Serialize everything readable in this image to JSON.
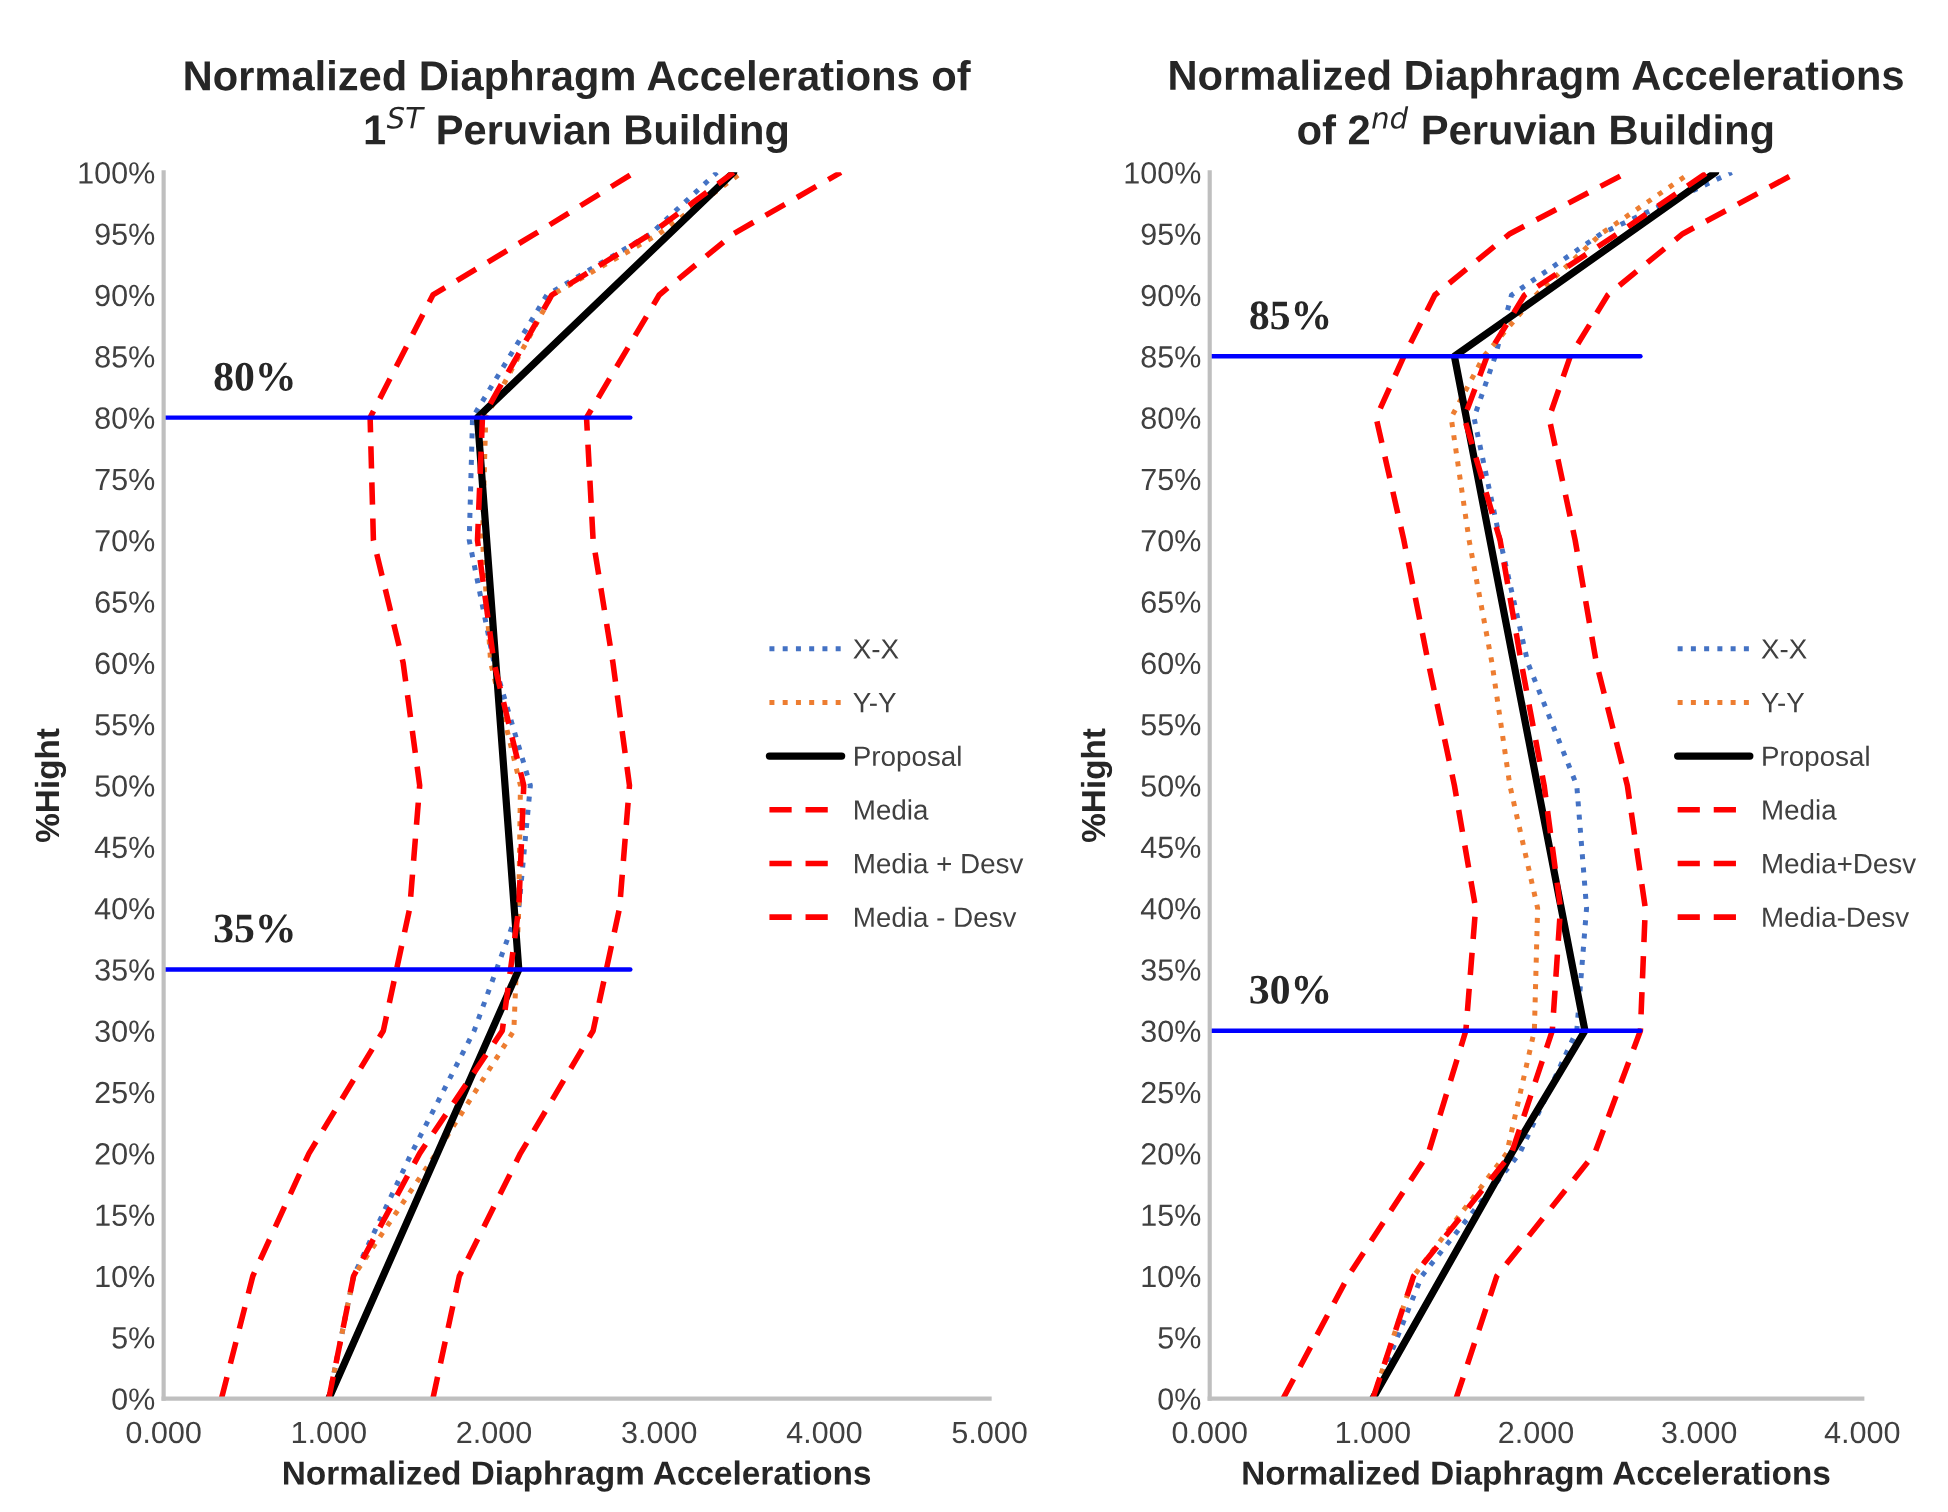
{
  "chart_data": [
    {
      "type": "line",
      "title": "Normalized Diaphragm Accelerations of\n1$^{ST}$ Peruvian Building",
      "xlabel": "Normalized Diaphragm Accelerations",
      "ylabel": "%Hight",
      "xlim": [
        0,
        5
      ],
      "xticks": [
        {
          "value": 0,
          "label": "0.000"
        },
        {
          "value": 1,
          "label": "1.000"
        },
        {
          "value": 2,
          "label": "2.000"
        },
        {
          "value": 3,
          "label": "3.000"
        },
        {
          "value": 4,
          "label": "4.000"
        },
        {
          "value": 5,
          "label": "5.000"
        }
      ],
      "ylim": [
        0,
        100
      ],
      "yticks": [
        {
          "value": 0,
          "label": "0%"
        },
        {
          "value": 5,
          "label": "5%"
        },
        {
          "value": 10,
          "label": "10%"
        },
        {
          "value": 15,
          "label": "15%"
        },
        {
          "value": 20,
          "label": "20%"
        },
        {
          "value": 25,
          "label": "25%"
        },
        {
          "value": 30,
          "label": "30%"
        },
        {
          "value": 35,
          "label": "35%"
        },
        {
          "value": 40,
          "label": "40%"
        },
        {
          "value": 45,
          "label": "45%"
        },
        {
          "value": 50,
          "label": "50%"
        },
        {
          "value": 55,
          "label": "55%"
        },
        {
          "value": 60,
          "label": "60%"
        },
        {
          "value": 65,
          "label": "65%"
        },
        {
          "value": 70,
          "label": "70%"
        },
        {
          "value": 75,
          "label": "75%"
        },
        {
          "value": 80,
          "label": "80%"
        },
        {
          "value": 85,
          "label": "85%"
        },
        {
          "value": 90,
          "label": "90%"
        },
        {
          "value": 95,
          "label": "95%"
        },
        {
          "value": 100,
          "label": "100%"
        }
      ],
      "grid": false,
      "legend": "right",
      "marker": "none",
      "series": [
        {
          "name": "X-X",
          "color": "#4472c4",
          "line_style": "dotted",
          "x": [
            1.0,
            1.15,
            1.5,
            1.88,
            2.15,
            2.22,
            2.0,
            1.85,
            1.87,
            2.32,
            2.95,
            3.35
          ],
          "values": [
            0,
            10,
            20,
            30,
            40,
            50,
            60,
            70,
            80,
            90,
            95,
            100
          ]
        },
        {
          "name": "Y-Y",
          "color": "#ed7d31",
          "line_style": "dotted",
          "x": [
            1.0,
            1.15,
            1.65,
            2.12,
            2.15,
            2.16,
            1.98,
            1.93,
            1.95,
            2.35,
            3.0,
            3.5
          ],
          "values": [
            0,
            10,
            20,
            30,
            40,
            50,
            60,
            70,
            80,
            90,
            95,
            100
          ]
        },
        {
          "name": "Proposal",
          "color": "#000000",
          "line_style": "solid",
          "x": [
            1.0,
            2.15,
            1.9,
            3.45
          ],
          "values": [
            0,
            35,
            80,
            100
          ]
        },
        {
          "name": "Media",
          "color": "#ff0000",
          "line_style": "dashed",
          "x": [
            1.0,
            1.15,
            1.55,
            2.05,
            2.15,
            2.18,
            2.0,
            1.9,
            1.93,
            2.35,
            2.95,
            3.45
          ],
          "values": [
            0,
            10,
            20,
            30,
            40,
            50,
            60,
            70,
            80,
            90,
            95,
            100
          ]
        },
        {
          "name": "Media + Desv",
          "color": "#ff0000",
          "line_style": "dashed",
          "x": [
            1.63,
            1.79,
            2.16,
            2.6,
            2.76,
            2.82,
            2.72,
            2.6,
            2.56,
            3.0,
            3.45,
            4.1
          ],
          "values": [
            0,
            10,
            20,
            30,
            40,
            50,
            60,
            70,
            80,
            90,
            95,
            100
          ]
        },
        {
          "name": "Media - Desv",
          "color": "#ff0000",
          "line_style": "dashed",
          "x": [
            0.35,
            0.54,
            0.88,
            1.33,
            1.49,
            1.55,
            1.45,
            1.27,
            1.25,
            1.63,
            2.25,
            2.85
          ],
          "values": [
            0,
            10,
            20,
            30,
            40,
            50,
            60,
            70,
            80,
            90,
            95,
            100
          ]
        }
      ],
      "ref_lines": [
        {
          "axis": "y",
          "value": 80,
          "label": "80%",
          "color": "#0000ff"
        },
        {
          "axis": "y",
          "value": 35,
          "label": "35%",
          "color": "#0000ff"
        }
      ]
    },
    {
      "type": "line",
      "title": "Normalized Diaphragm Accelerations\nof 2$^{nd}$ Peruvian Building",
      "xlabel": "Normalized Diaphragm Accelerations",
      "ylabel": "%Hight",
      "xlim": [
        0,
        4
      ],
      "xticks": [
        {
          "value": 0,
          "label": "0.000"
        },
        {
          "value": 1,
          "label": "1.000"
        },
        {
          "value": 2,
          "label": "2.000"
        },
        {
          "value": 3,
          "label": "3.000"
        },
        {
          "value": 4,
          "label": "4.000"
        }
      ],
      "ylim": [
        0,
        100
      ],
      "yticks": [
        {
          "value": 0,
          "label": "0%"
        },
        {
          "value": 5,
          "label": "5%"
        },
        {
          "value": 10,
          "label": "10%"
        },
        {
          "value": 15,
          "label": "15%"
        },
        {
          "value": 20,
          "label": "20%"
        },
        {
          "value": 25,
          "label": "25%"
        },
        {
          "value": 30,
          "label": "30%"
        },
        {
          "value": 35,
          "label": "35%"
        },
        {
          "value": 40,
          "label": "40%"
        },
        {
          "value": 45,
          "label": "45%"
        },
        {
          "value": 50,
          "label": "50%"
        },
        {
          "value": 55,
          "label": "55%"
        },
        {
          "value": 60,
          "label": "60%"
        },
        {
          "value": 65,
          "label": "65%"
        },
        {
          "value": 70,
          "label": "70%"
        },
        {
          "value": 75,
          "label": "75%"
        },
        {
          "value": 80,
          "label": "80%"
        },
        {
          "value": 85,
          "label": "85%"
        },
        {
          "value": 90,
          "label": "90%"
        },
        {
          "value": 95,
          "label": "95%"
        },
        {
          "value": 100,
          "label": "100%"
        }
      ],
      "grid": false,
      "legend": "right",
      "marker": "none",
      "series": [
        {
          "name": "X-X",
          "color": "#4472c4",
          "line_style": "dotted",
          "x": [
            1.0,
            1.3,
            1.9,
            2.25,
            2.31,
            2.25,
            2.1,
            1.95,
            1.78,
            1.62,
            1.75,
            1.85,
            2.4,
            3.2
          ],
          "values": [
            0,
            10,
            20,
            30,
            40,
            50,
            55,
            60,
            70,
            80,
            85,
            90,
            95,
            100
          ]
        },
        {
          "name": "Y-Y",
          "color": "#ed7d31",
          "line_style": "dotted",
          "x": [
            1.0,
            1.25,
            1.82,
            1.99,
            2.01,
            1.84,
            1.73,
            1.59,
            1.48,
            1.68,
            2.0,
            2.4,
            2.95
          ],
          "values": [
            0,
            10,
            20,
            30,
            40,
            50,
            60,
            70,
            80,
            85,
            90,
            95,
            100
          ]
        },
        {
          "name": "Proposal",
          "color": "#000000",
          "line_style": "solid",
          "x": [
            1.0,
            1.85,
            2.3,
            1.5,
            3.1
          ],
          "values": [
            0,
            20,
            30,
            85,
            100
          ]
        },
        {
          "name": "Media",
          "color": "#ff0000",
          "line_style": "dashed",
          "x": [
            1.0,
            1.25,
            1.85,
            2.1,
            2.15,
            2.05,
            1.91,
            1.78,
            1.56,
            1.7,
            1.93,
            2.5,
            3.05
          ],
          "values": [
            0,
            10,
            20,
            30,
            40,
            50,
            60,
            70,
            80,
            85,
            90,
            95,
            100
          ]
        },
        {
          "name": "Media+Desv",
          "color": "#ff0000",
          "line_style": "dashed",
          "x": [
            1.51,
            1.76,
            2.36,
            2.64,
            2.67,
            2.56,
            2.37,
            2.24,
            2.08,
            2.21,
            2.44,
            2.9,
            3.6
          ],
          "values": [
            0,
            10,
            20,
            30,
            40,
            50,
            60,
            70,
            80,
            85,
            90,
            95,
            100
          ]
        },
        {
          "name": "Media-Desv",
          "color": "#ff0000",
          "line_style": "dashed",
          "x": [
            0.45,
            0.85,
            1.34,
            1.57,
            1.63,
            1.5,
            1.34,
            1.19,
            1.02,
            1.19,
            1.38,
            1.84,
            2.56
          ],
          "values": [
            0,
            10,
            20,
            30,
            40,
            50,
            60,
            70,
            80,
            85,
            90,
            95,
            100
          ]
        }
      ],
      "ref_lines": [
        {
          "axis": "y",
          "value": 85,
          "label": "85%",
          "color": "#0000ff"
        },
        {
          "axis": "y",
          "value": 30,
          "label": "30%",
          "color": "#0000ff"
        }
      ]
    }
  ]
}
